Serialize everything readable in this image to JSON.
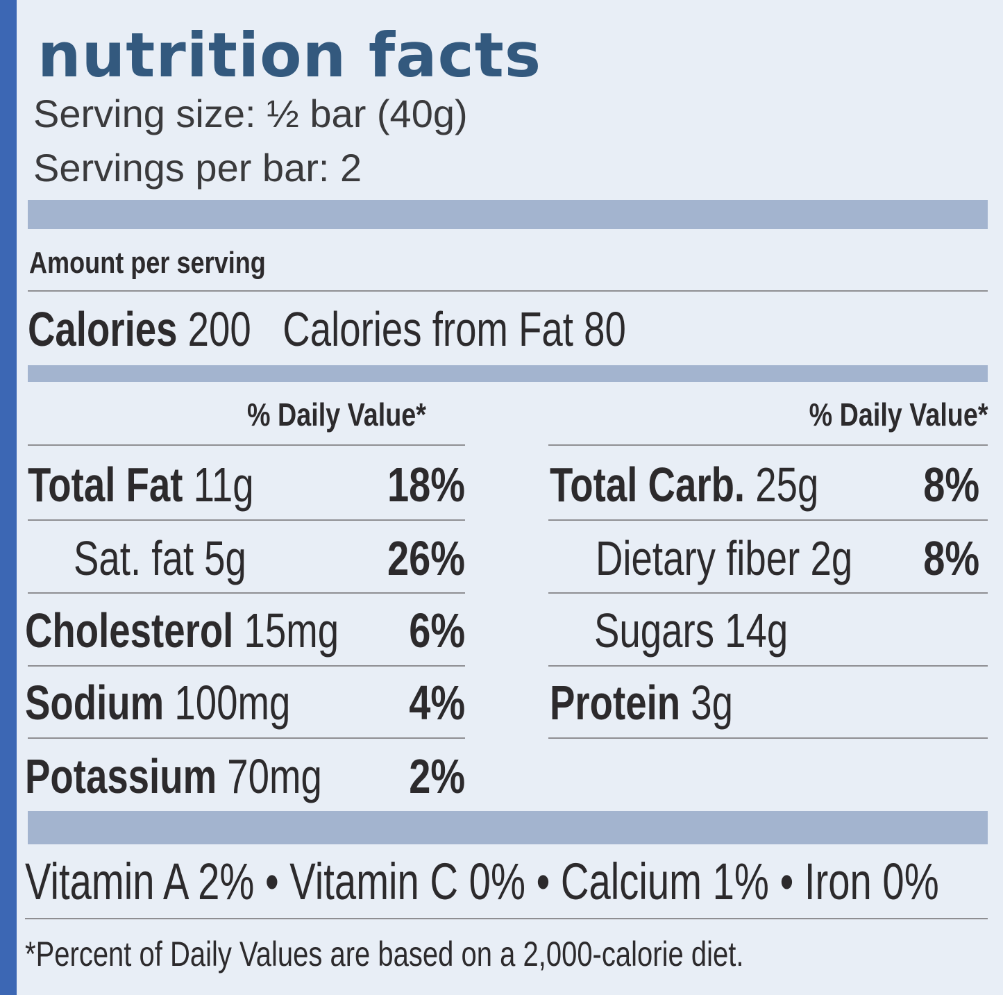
{
  "title": "nutrition facts",
  "serving_size": "Serving size: ½ bar (40g)",
  "servings_per": "Servings per bar: 2",
  "amount_per_serving": "Amount per serving",
  "calories": {
    "label": "Calories",
    "value": "200",
    "from_fat_label": "Calories from Fat",
    "from_fat_value": "80"
  },
  "dv_header": "% Daily Value*",
  "left_nutrients": [
    {
      "label": "Total Fat",
      "amount": "11g",
      "pct": "18%"
    },
    {
      "label": "Sat. fat",
      "amount": "5g",
      "pct": "26%"
    },
    {
      "label": "Cholesterol",
      "amount": "15mg",
      "pct": "6%"
    },
    {
      "label": "Sodium",
      "amount": "100mg",
      "pct": "4%"
    },
    {
      "label": "Potassium",
      "amount": "70mg",
      "pct": "2%"
    }
  ],
  "right_nutrients": [
    {
      "label": "Total Carb.",
      "amount": "25g",
      "pct": "8%"
    },
    {
      "label": "Dietary fiber",
      "amount": "2g",
      "pct": "8%"
    },
    {
      "label": "Sugars",
      "amount": "14g",
      "pct": ""
    },
    {
      "label": "Protein",
      "amount": "3g",
      "pct": ""
    }
  ],
  "vitamins": "Vitamin A 2% • Vitamin C 0% • Calcium 1% • Iron 0%",
  "footnote": "*Percent of Daily Values are based on a 2,000-calorie diet.",
  "colors": {
    "page_edge": "#3c67b4",
    "label_bg": "#e8eef6",
    "title": "#33597e",
    "bar": "#a3b4cf"
  }
}
